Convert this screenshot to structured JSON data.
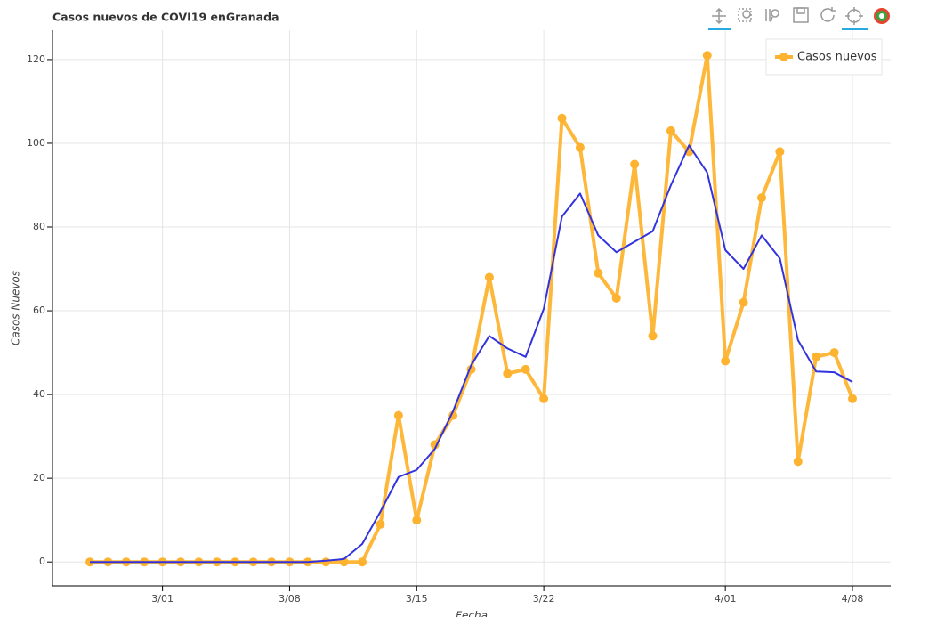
{
  "chart_data": {
    "type": "line",
    "title": "Casos nuevos de COVI19 enGranada",
    "xlabel": "Fecha",
    "ylabel": "Casos Nuevos",
    "x": [
      "2/26",
      "2/27",
      "2/28",
      "2/29",
      "3/01",
      "3/02",
      "3/03",
      "3/04",
      "3/05",
      "3/06",
      "3/07",
      "3/08",
      "3/09",
      "3/10",
      "3/11",
      "3/12",
      "3/13",
      "3/14",
      "3/15",
      "3/16",
      "3/17",
      "3/18",
      "3/19",
      "3/20",
      "3/21",
      "3/22",
      "3/23",
      "3/24",
      "3/25",
      "3/26",
      "3/27",
      "3/28",
      "3/29",
      "3/30",
      "3/31",
      "4/01",
      "4/02",
      "4/03",
      "4/04",
      "4/05",
      "4/06",
      "4/07",
      "4/08"
    ],
    "series": [
      {
        "name": "Casos nuevos",
        "color": "#fdb32f",
        "values": [
          0,
          0,
          0,
          0,
          0,
          0,
          0,
          0,
          0,
          0,
          0,
          0,
          0,
          0,
          0,
          0,
          9,
          35,
          10,
          28,
          35,
          46,
          68,
          45,
          46,
          39,
          106,
          99,
          69,
          63,
          95,
          54,
          103,
          98,
          121,
          48,
          62,
          87,
          98,
          24,
          49,
          50,
          39
        ]
      },
      {
        "color": "#3333dd",
        "values": [
          0,
          0,
          0,
          0,
          0,
          0,
          0,
          0,
          0,
          0,
          0,
          0,
          0,
          0.3,
          0.7,
          4.3,
          12,
          20.3,
          22,
          27,
          36,
          47,
          54,
          51,
          49,
          60.5,
          82.5,
          88,
          78,
          74,
          76.5,
          79,
          90,
          99.5,
          93,
          74.5,
          70,
          78,
          72.5,
          53,
          45.5,
          45.3,
          43
        ]
      }
    ],
    "xticks": [
      "3/01",
      "3/08",
      "3/15",
      "3/22",
      "4/01",
      "4/08"
    ],
    "ylim": [
      -5.7,
      127
    ],
    "yticks": [
      0,
      20,
      40,
      60,
      80,
      100,
      120
    ],
    "grid": true,
    "legend": "top-right"
  }
}
